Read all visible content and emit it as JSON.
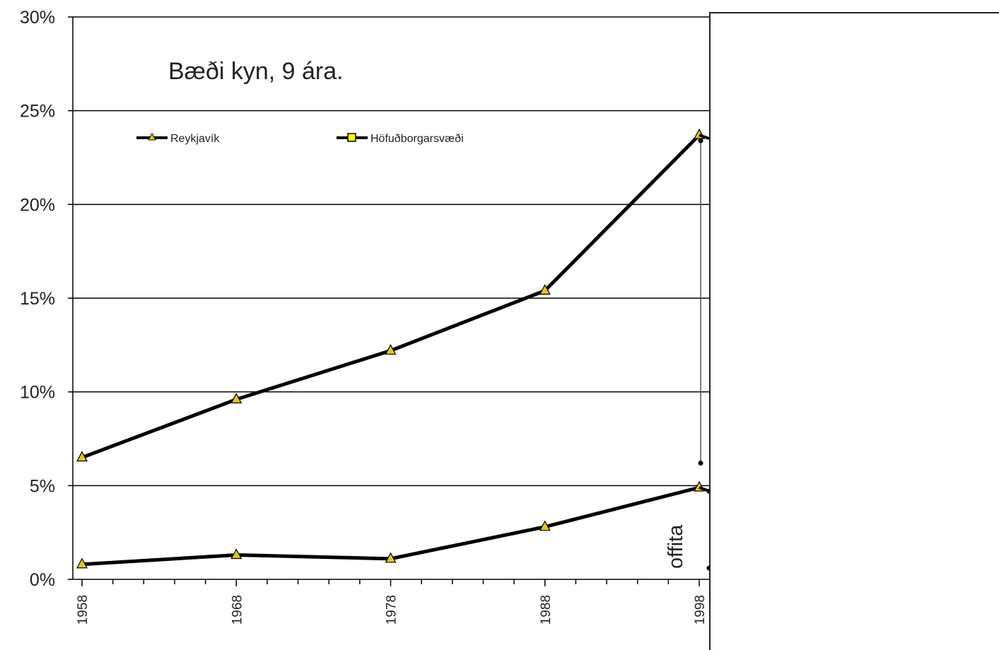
{
  "chart_data": {
    "type": "line",
    "title": "Bæði kyn, 9 ára.",
    "xlabel": "",
    "ylabel": "",
    "x": [
      1958,
      1968,
      1978,
      1988,
      1998
    ],
    "x_tick_labels": [
      "1958",
      "1968",
      "1978",
      "1988",
      "1998"
    ],
    "y_tick_labels": [
      "0%",
      "5%",
      "10%",
      "15%",
      "20%",
      "25%",
      "30%"
    ],
    "ylim": [
      0,
      30
    ],
    "xlim": [
      1957.5,
      1998.6
    ],
    "grid": true,
    "legend": {
      "placement": "top-left",
      "entries": [
        "Reykjavík",
        "Höfuðborgarsvæði"
      ]
    },
    "series": [
      {
        "name": "Reykjavík",
        "marker": "triangle",
        "values": [
          6.5,
          9.6,
          12.2,
          15.4,
          23.7
        ]
      },
      {
        "name": "",
        "marker": "triangle",
        "values": [
          0.8,
          1.3,
          1.1,
          2.8,
          4.9
        ]
      }
    ],
    "annotations": [
      {
        "text": "offita",
        "x": 1997.3,
        "y": 1.0,
        "orientation": "vertical"
      }
    ],
    "colors": {
      "line": "#000000",
      "triangle_fill": "#e8c418",
      "square_fill": "#ffff00",
      "grid": "#000000"
    }
  }
}
